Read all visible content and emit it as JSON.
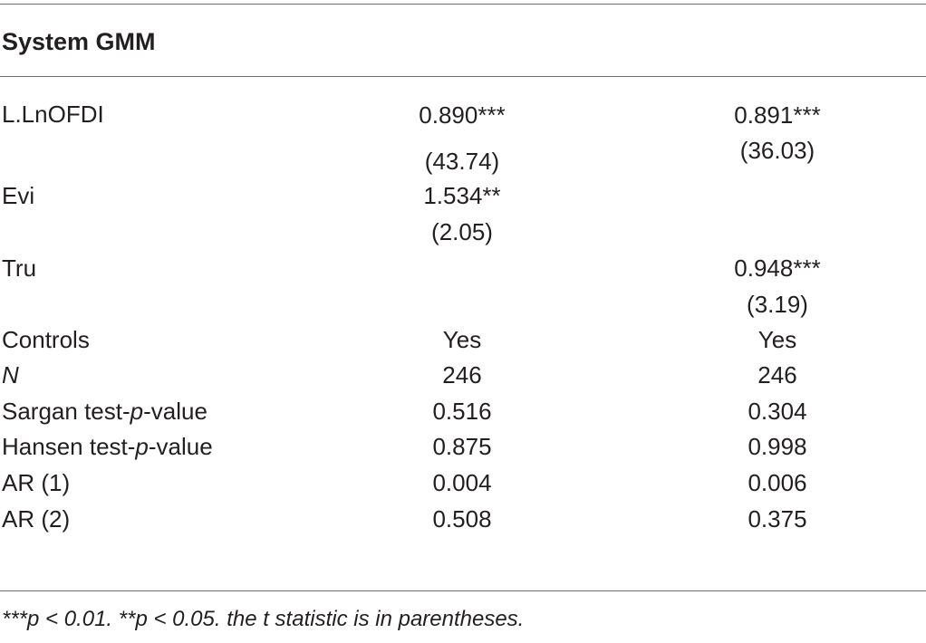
{
  "table": {
    "title": "System GMM",
    "rows": {
      "lnofdi": {
        "label": "L.LnOFDI",
        "col1": "0.890***",
        "col1_t": "(43.74)",
        "col2": "0.891***",
        "col2_t": "(36.03)"
      },
      "evi": {
        "label": "Evi",
        "col1": "1.534**",
        "col1_t": "(2.05)"
      },
      "tru": {
        "label": "Tru",
        "col2": "0.948***",
        "col2_t": "(3.19)"
      },
      "controls": {
        "label": "Controls",
        "col1": "Yes",
        "col2": "Yes"
      },
      "n": {
        "label": "N",
        "col1": "246",
        "col2": "246"
      },
      "sargan": {
        "label_pre": "Sargan test-",
        "label_p": "p",
        "label_post": "-value",
        "col1": "0.516",
        "col2": "0.304"
      },
      "hansen": {
        "label_pre": "Hansen test-",
        "label_p": "p",
        "label_post": "-value",
        "col1": "0.875",
        "col2": "0.998"
      },
      "ar1": {
        "label": "AR (1)",
        "col1": "0.004",
        "col2": "0.006"
      },
      "ar2": {
        "label": "AR (2)",
        "col1": "0.508",
        "col2": "0.375"
      }
    },
    "footnote": "***p < 0.01. **p < 0.05. the t statistic is in parentheses."
  }
}
